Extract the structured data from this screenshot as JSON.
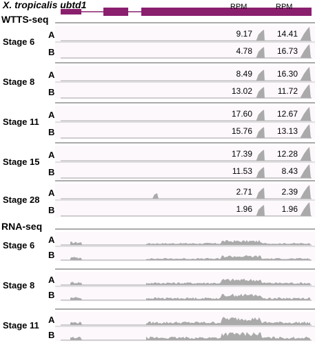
{
  "gene_title": "X. tropicalis ubtd1",
  "rpm_headers": [
    "RPM",
    "RPM"
  ],
  "wtts": {
    "section_label": "WTTS-seq",
    "stages": [
      {
        "label": "Stage 6",
        "replicates": [
          {
            "label": "A",
            "values": [
              "9.17",
              "14.41"
            ]
          },
          {
            "label": "B",
            "values": [
              "4.78",
              "16.73"
            ]
          }
        ]
      },
      {
        "label": "Stage 8",
        "replicates": [
          {
            "label": "A",
            "values": [
              "8.49",
              "16.30"
            ]
          },
          {
            "label": "B",
            "values": [
              "13.02",
              "11.72"
            ]
          }
        ]
      },
      {
        "label": "Stage 11",
        "replicates": [
          {
            "label": "A",
            "values": [
              "17.60",
              "12.67"
            ]
          },
          {
            "label": "B",
            "values": [
              "15.76",
              "13.13"
            ]
          }
        ]
      },
      {
        "label": "Stage 15",
        "replicates": [
          {
            "label": "A",
            "values": [
              "17.39",
              "12.28"
            ]
          },
          {
            "label": "B",
            "values": [
              "11.53",
              "8.43"
            ]
          }
        ]
      },
      {
        "label": "Stage 28",
        "replicates": [
          {
            "label": "A",
            "values": [
              "2.71",
              "2.39"
            ]
          },
          {
            "label": "B",
            "values": [
              "1.96",
              "1.96"
            ]
          }
        ]
      }
    ]
  },
  "rnaseq": {
    "section_label": "RNA-seq",
    "stages": [
      {
        "label": "Stage 6",
        "replicates": [
          {
            "label": "A"
          },
          {
            "label": "B"
          }
        ]
      },
      {
        "label": "Stage 8",
        "replicates": [
          {
            "label": "A"
          },
          {
            "label": "B"
          }
        ]
      },
      {
        "label": "Stage 11",
        "replicates": [
          {
            "label": "A"
          },
          {
            "label": "B"
          }
        ]
      }
    ]
  },
  "colors": {
    "gene_model": "#8a1f6e",
    "track_fill": "#aaaaaa",
    "baseline": "#888888",
    "group_rule": "#555555",
    "row_rule": "#b0b0b0"
  }
}
